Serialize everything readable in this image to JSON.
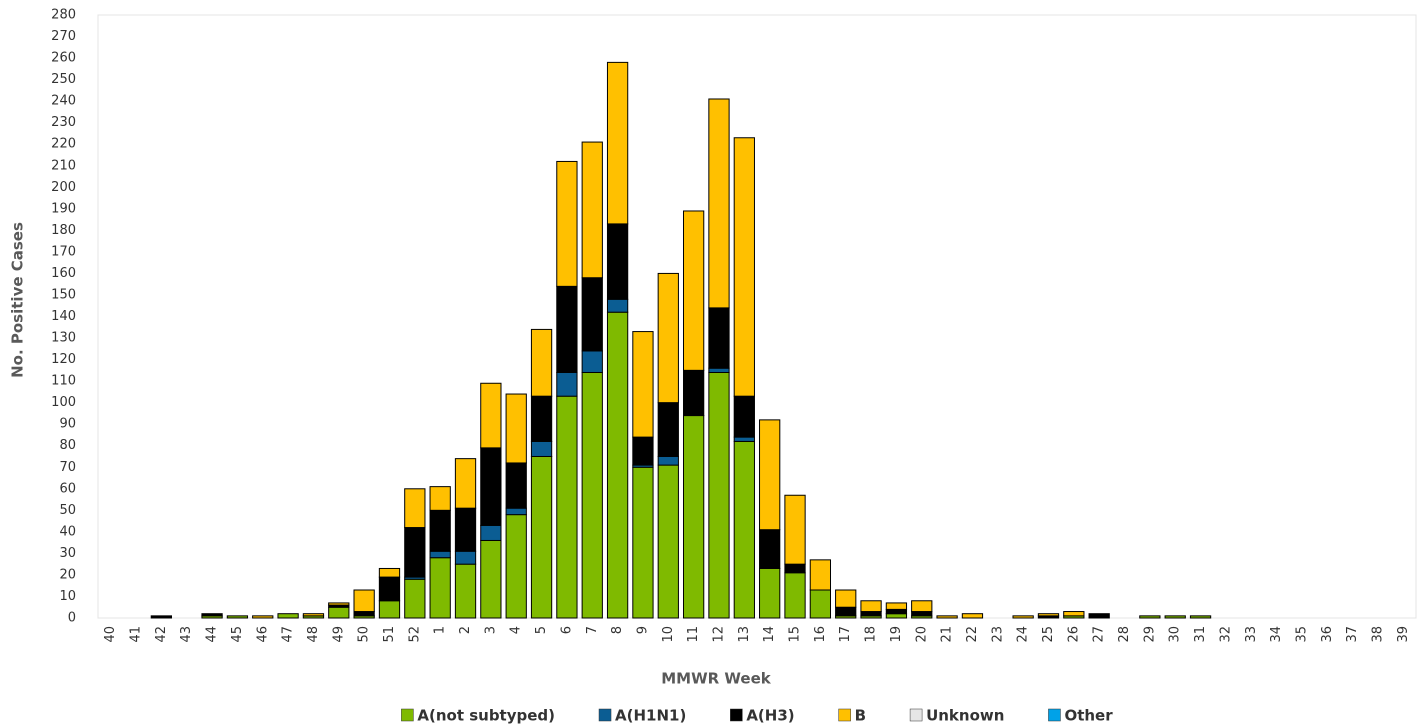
{
  "chart_data": {
    "type": "stacked_bar",
    "xlabel": "MMWR Week",
    "ylabel": "No. Positive Cases",
    "categories": [
      "40",
      "41",
      "42",
      "43",
      "44",
      "45",
      "46",
      "47",
      "48",
      "49",
      "50",
      "51",
      "52",
      "1",
      "2",
      "3",
      "4",
      "5",
      "6",
      "7",
      "8",
      "9",
      "10",
      "11",
      "12",
      "13",
      "14",
      "15",
      "16",
      "17",
      "18",
      "19",
      "20",
      "21",
      "22",
      "23",
      "24",
      "25",
      "26",
      "27",
      "28",
      "29",
      "30",
      "31",
      "32",
      "33",
      "34",
      "35",
      "36",
      "37",
      "38",
      "39"
    ],
    "series": [
      {
        "name": "A(not subtyped)",
        "color": "#7fba00",
        "values": [
          0,
          0,
          0,
          0,
          1,
          1,
          0,
          2,
          1,
          5,
          1,
          8,
          18,
          28,
          25,
          36,
          48,
          75,
          103,
          114,
          142,
          70,
          71,
          94,
          114,
          82,
          23,
          21,
          13,
          1,
          1,
          2,
          1,
          0,
          0,
          0,
          0,
          0,
          1,
          0,
          0,
          1,
          1,
          1,
          0,
          0,
          0,
          0,
          0,
          0,
          0,
          0
        ]
      },
      {
        "name": "A(H1N1)",
        "color": "#0b5d93",
        "values": [
          0,
          0,
          0,
          0,
          0,
          0,
          0,
          0,
          0,
          0,
          0,
          0,
          1,
          3,
          6,
          7,
          3,
          7,
          11,
          10,
          6,
          1,
          4,
          0,
          2,
          2,
          0,
          0,
          0,
          0,
          0,
          0,
          0,
          0,
          0,
          0,
          0,
          0,
          0,
          0,
          0,
          0,
          0,
          0,
          0,
          0,
          0,
          0,
          0,
          0,
          0,
          0
        ]
      },
      {
        "name": "A(H3)",
        "color": "#000000",
        "values": [
          0,
          0,
          1,
          0,
          1,
          0,
          0,
          0,
          0,
          1,
          2,
          11,
          23,
          19,
          20,
          36,
          21,
          21,
          40,
          34,
          35,
          13,
          25,
          21,
          28,
          19,
          18,
          4,
          0,
          4,
          2,
          2,
          2,
          0,
          0,
          0,
          0,
          1,
          0,
          2,
          0,
          0,
          0,
          0,
          0,
          0,
          0,
          0,
          0,
          0,
          0,
          0
        ]
      },
      {
        "name": "B",
        "color": "#ffc000",
        "values": [
          0,
          0,
          0,
          0,
          0,
          0,
          1,
          0,
          1,
          1,
          10,
          4,
          18,
          11,
          23,
          30,
          32,
          31,
          58,
          63,
          75,
          49,
          60,
          74,
          97,
          120,
          51,
          32,
          14,
          8,
          5,
          3,
          5,
          1,
          2,
          0,
          1,
          1,
          2,
          0,
          0,
          0,
          0,
          0,
          0,
          0,
          0,
          0,
          0,
          0,
          0,
          0
        ]
      },
      {
        "name": "Unknown",
        "color": "#e6e6e6",
        "values": [
          0,
          0,
          0,
          0,
          0,
          0,
          0,
          0,
          0,
          0,
          0,
          0,
          0,
          0,
          0,
          0,
          0,
          0,
          0,
          0,
          0,
          0,
          0,
          0,
          0,
          0,
          0,
          0,
          0,
          0,
          0,
          0,
          0,
          0,
          0,
          0,
          0,
          0,
          0,
          0,
          0,
          0,
          0,
          0,
          0,
          0,
          0,
          0,
          0,
          0,
          0,
          0
        ]
      },
      {
        "name": "Other",
        "color": "#00a2e8",
        "values": [
          0,
          0,
          0,
          0,
          0,
          0,
          0,
          0,
          0,
          0,
          0,
          0,
          0,
          0,
          0,
          0,
          0,
          0,
          0,
          0,
          0,
          0,
          0,
          0,
          0,
          0,
          0,
          0,
          0,
          0,
          0,
          0,
          0,
          0,
          0,
          0,
          0,
          0,
          0,
          0,
          0,
          0,
          0,
          0,
          0,
          0,
          0,
          0,
          0,
          0,
          0,
          0
        ]
      }
    ],
    "ylim": [
      0,
      280
    ],
    "yticks": [
      0,
      10,
      20,
      30,
      40,
      50,
      60,
      70,
      80,
      90,
      100,
      110,
      120,
      130,
      140,
      150,
      160,
      170,
      180,
      190,
      200,
      210,
      220,
      230,
      240,
      250,
      260,
      270,
      280
    ],
    "grid": false,
    "legend": "bottom"
  }
}
